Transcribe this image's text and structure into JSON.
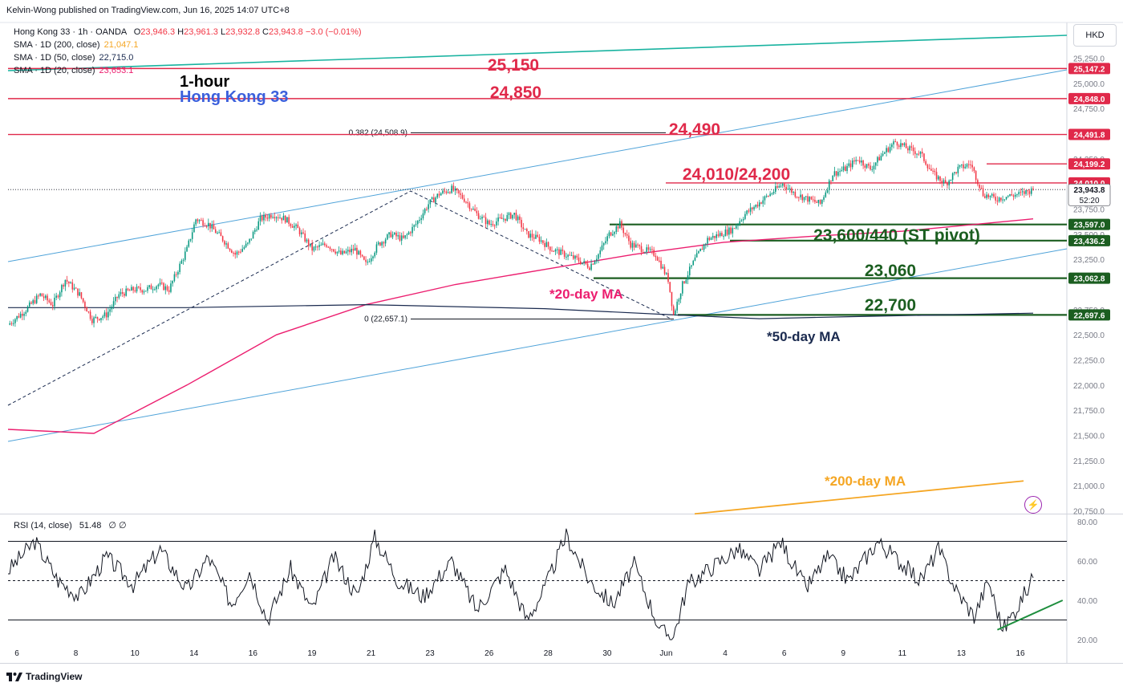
{
  "header": {
    "publisher": "Kelvin-Wong published on TradingView.com, Jun 16, 2025 14:07 UTC+8"
  },
  "legend": {
    "symbol": "Hong Kong 33 · 1h · OANDA",
    "ohlc": [
      {
        "k": "O",
        "v": "23,946.3"
      },
      {
        "k": "H",
        "v": "23,961.3"
      },
      {
        "k": "L",
        "v": "23,932.8"
      },
      {
        "k": "C",
        "v": "23,943.8"
      }
    ],
    "change": "−3.0 (−0.01%)",
    "sma200_label": "SMA · 1D (200, close)",
    "sma200_value": "21,047.1",
    "sma50_label": "SMA · 1D (50, close)",
    "sma50_value": "22,715.0",
    "sma20_label": "SMA · 1D (20, close)",
    "sma20_value": "23,653.1",
    "rsi_label": "RSI (14, close)",
    "rsi_value": "51.48",
    "rsi_extra": "∅ ∅"
  },
  "currency": "HKD",
  "footer": {
    "brand": "TradingView"
  },
  "colors": {
    "up": "#089981",
    "down": "#f23645",
    "resistance": "#e0294a",
    "support": "#1b5e20",
    "channel": "#4fa3d9",
    "sma20": "#ec1e6f",
    "sma50": "#1a2a4f",
    "sma200": "#f5a623",
    "upper_trend": "#19b3a0",
    "rsi": "#131722"
  },
  "chart_data": {
    "type": "candlestick",
    "title": "1-hour",
    "subtitle": "Hong Kong 33",
    "y_axis": {
      "ticks": [
        25250,
        25000,
        24750,
        24250,
        23750,
        23500,
        23250,
        22750,
        22500,
        22250,
        22000,
        21750,
        21500,
        21250,
        21000,
        20750
      ],
      "range": [
        20720,
        25560
      ]
    },
    "x_axis": {
      "ticks": [
        "6",
        "8",
        "10",
        "14",
        "16",
        "19",
        "21",
        "23",
        "26",
        "28",
        "30",
        "Jun",
        "4",
        "6",
        "9",
        "11",
        "13",
        "16"
      ]
    },
    "levels": [
      {
        "label": "25,150",
        "price_tag": "25,147.2",
        "value": 25147.2,
        "kind": "resistance"
      },
      {
        "label": "24,850",
        "price_tag": "24,848.0",
        "value": 24848.0,
        "kind": "resistance"
      },
      {
        "label": "24,490",
        "price_tag": "24,491.8",
        "value": 24491.8,
        "kind": "resistance"
      },
      {
        "label": "24,010/24,200",
        "price_tag": "24,199.2",
        "value": 24199.2,
        "kind": "resistance"
      },
      {
        "label": "",
        "price_tag": "24,010.0",
        "value": 24010.0,
        "kind": "resistance"
      },
      {
        "label": "23,600/440 (ST pivot)",
        "price_tag": "23,597.0",
        "value": 23597.0,
        "kind": "support"
      },
      {
        "label": "",
        "price_tag": "23,436.2",
        "value": 23436.2,
        "kind": "support"
      },
      {
        "label": "23,060",
        "price_tag": "23,062.8",
        "value": 23062.8,
        "kind": "support"
      },
      {
        "label": "22,700",
        "price_tag": "22,697.6",
        "value": 22697.6,
        "kind": "support"
      }
    ],
    "last_price": {
      "value": 23943.8,
      "tag": "23,943.8",
      "countdown": "52:20"
    },
    "fib": [
      {
        "label": "0.382 (24,508.9)",
        "value": 24508.9
      },
      {
        "label": "0 (22,657.1)",
        "value": 22657.1
      }
    ],
    "annotations": {
      "sma20": "*20-day MA",
      "sma50": "*50-day MA",
      "sma200": "*200-day MA"
    },
    "close_path": [
      [
        0,
        22600
      ],
      [
        10,
        22750
      ],
      [
        18,
        22900
      ],
      [
        25,
        22800
      ],
      [
        32,
        23050
      ],
      [
        40,
        22900
      ],
      [
        47,
        22650
      ],
      [
        55,
        22700
      ],
      [
        62,
        22900
      ],
      [
        70,
        22950
      ],
      [
        77,
        22950
      ],
      [
        84,
        23000
      ],
      [
        90,
        22950
      ],
      [
        95,
        23150
      ],
      [
        100,
        23350
      ],
      [
        105,
        23650
      ],
      [
        112,
        23600
      ],
      [
        120,
        23450
      ],
      [
        127,
        23300
      ],
      [
        134,
        23400
      ],
      [
        141,
        23650
      ],
      [
        148,
        23700
      ],
      [
        155,
        23650
      ],
      [
        162,
        23550
      ],
      [
        170,
        23350
      ],
      [
        178,
        23400
      ],
      [
        186,
        23300
      ],
      [
        194,
        23350
      ],
      [
        200,
        23200
      ],
      [
        207,
        23400
      ],
      [
        214,
        23500
      ],
      [
        221,
        23450
      ],
      [
        228,
        23600
      ],
      [
        235,
        23800
      ],
      [
        241,
        23900
      ],
      [
        248,
        23950
      ],
      [
        255,
        23850
      ],
      [
        262,
        23700
      ],
      [
        269,
        23600
      ],
      [
        276,
        23650
      ],
      [
        283,
        23700
      ],
      [
        290,
        23500
      ],
      [
        297,
        23450
      ],
      [
        304,
        23350
      ],
      [
        311,
        23300
      ],
      [
        318,
        23250
      ],
      [
        325,
        23180
      ],
      [
        330,
        23300
      ],
      [
        336,
        23500
      ],
      [
        342,
        23600
      ],
      [
        348,
        23400
      ],
      [
        355,
        23350
      ],
      [
        362,
        23300
      ],
      [
        369,
        23050
      ],
      [
        372,
        22700
      ],
      [
        377,
        23000
      ],
      [
        384,
        23250
      ],
      [
        391,
        23450
      ],
      [
        398,
        23500
      ],
      [
        405,
        23550
      ],
      [
        412,
        23700
      ],
      [
        419,
        23800
      ],
      [
        426,
        23900
      ],
      [
        433,
        24000
      ],
      [
        440,
        23900
      ],
      [
        447,
        23850
      ],
      [
        454,
        23800
      ],
      [
        461,
        24100
      ],
      [
        468,
        24150
      ],
      [
        475,
        24250
      ],
      [
        482,
        24150
      ],
      [
        489,
        24300
      ],
      [
        496,
        24420
      ],
      [
        503,
        24350
      ],
      [
        510,
        24300
      ],
      [
        517,
        24100
      ],
      [
        524,
        24000
      ],
      [
        531,
        24150
      ],
      [
        538,
        24200
      ],
      [
        545,
        23900
      ],
      [
        552,
        23850
      ],
      [
        559,
        23880
      ],
      [
        566,
        23900
      ],
      [
        573,
        23943.8
      ]
    ],
    "sma20_path": [
      [
        0,
        21560
      ],
      [
        48,
        21520
      ],
      [
        100,
        22000
      ],
      [
        150,
        22500
      ],
      [
        200,
        22800
      ],
      [
        250,
        23000
      ],
      [
        300,
        23150
      ],
      [
        350,
        23300
      ],
      [
        400,
        23420
      ],
      [
        450,
        23480
      ],
      [
        500,
        23530
      ],
      [
        573,
        23653
      ]
    ],
    "sma50_path": [
      [
        0,
        22770
      ],
      [
        100,
        22770
      ],
      [
        200,
        22800
      ],
      [
        300,
        22760
      ],
      [
        370,
        22700
      ],
      [
        420,
        22660
      ],
      [
        470,
        22680
      ],
      [
        573,
        22715
      ]
    ],
    "sma200_path": [
      [
        380,
        20720
      ],
      [
        573,
        21047
      ]
    ],
    "rsi": {
      "ticks": [
        80,
        60,
        40,
        20
      ],
      "levels": [
        70,
        50,
        30
      ],
      "values": [
        [
          0,
          55
        ],
        [
          15,
          70
        ],
        [
          28,
          50
        ],
        [
          40,
          42
        ],
        [
          55,
          62
        ],
        [
          70,
          48
        ],
        [
          85,
          66
        ],
        [
          100,
          45
        ],
        [
          112,
          62
        ],
        [
          125,
          38
        ],
        [
          135,
          55
        ],
        [
          145,
          30
        ],
        [
          158,
          56
        ],
        [
          170,
          35
        ],
        [
          182,
          62
        ],
        [
          195,
          42
        ],
        [
          205,
          72
        ],
        [
          218,
          50
        ],
        [
          232,
          42
        ],
        [
          248,
          60
        ],
        [
          262,
          35
        ],
        [
          278,
          56
        ],
        [
          290,
          30
        ],
        [
          300,
          46
        ],
        [
          312,
          73
        ],
        [
          325,
          50
        ],
        [
          338,
          38
        ],
        [
          350,
          58
        ],
        [
          365,
          24
        ],
        [
          372,
          22
        ],
        [
          380,
          48
        ],
        [
          395,
          58
        ],
        [
          408,
          66
        ],
        [
          420,
          55
        ],
        [
          432,
          70
        ],
        [
          446,
          46
        ],
        [
          458,
          62
        ],
        [
          470,
          50
        ],
        [
          486,
          70
        ],
        [
          498,
          60
        ],
        [
          510,
          50
        ],
        [
          520,
          66
        ],
        [
          530,
          45
        ],
        [
          540,
          32
        ],
        [
          548,
          50
        ],
        [
          556,
          25
        ],
        [
          565,
          38
        ],
        [
          573,
          51.48
        ]
      ],
      "trendline": [
        [
          553,
          25
        ],
        [
          585,
          40
        ]
      ]
    }
  }
}
